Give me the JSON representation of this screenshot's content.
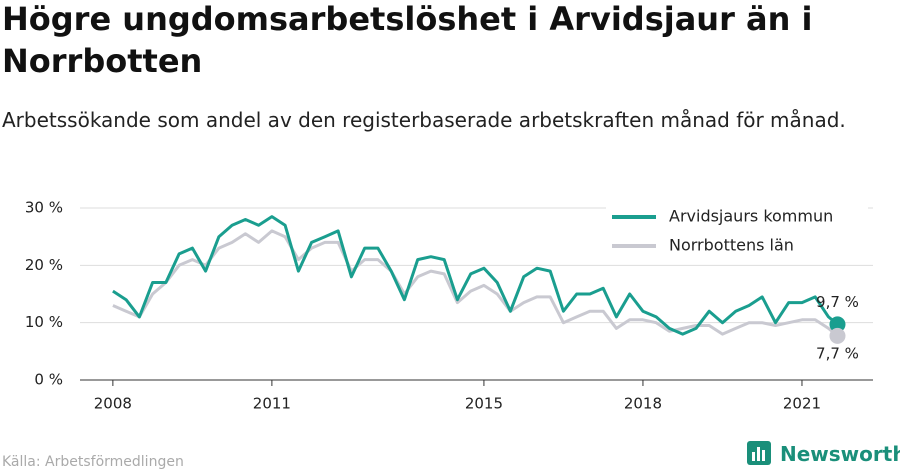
{
  "chart_data": {
    "type": "line",
    "title": "Högre ungdomsarbetslöshet i Arvidsjaur än i Norrbotten",
    "subtitle": "Arbetssökande som andel av den registerbaserade arbetskraften månad för månad.",
    "source": "Källa: Arbetsförmedlingen",
    "brand": "Newsworthy",
    "x": [
      2008,
      2008.25,
      2008.5,
      2008.75,
      2009,
      2009.25,
      2009.5,
      2009.75,
      2010,
      2010.25,
      2010.5,
      2010.75,
      2011,
      2011.25,
      2011.5,
      2011.75,
      2012,
      2012.25,
      2012.5,
      2012.75,
      2013,
      2013.25,
      2013.5,
      2013.75,
      2014,
      2014.25,
      2014.5,
      2014.75,
      2015,
      2015.25,
      2015.5,
      2015.75,
      2016,
      2016.25,
      2016.5,
      2016.75,
      2017,
      2017.25,
      2017.5,
      2017.75,
      2018,
      2018.25,
      2018.5,
      2018.75,
      2019,
      2019.25,
      2019.5,
      2019.75,
      2020,
      2020.25,
      2020.5,
      2020.75,
      2021,
      2021.25,
      2021.5,
      2021.67
    ],
    "series": [
      {
        "name": "Arvidsjaurs kommun",
        "color": "#1a9e8f",
        "values": [
          15.5,
          14,
          11,
          17,
          17,
          22,
          23,
          19,
          25,
          27,
          28,
          27,
          28.5,
          27,
          19,
          24,
          25,
          26,
          18,
          23,
          23,
          19,
          14,
          21,
          21.5,
          21,
          14,
          18.5,
          19.5,
          17,
          12,
          18,
          19.5,
          19,
          12,
          15,
          15,
          16,
          11,
          15,
          12,
          11,
          9,
          8,
          9,
          12,
          10,
          12,
          13,
          14.5,
          10,
          13.5,
          13.5,
          14.5,
          11,
          9.7
        ],
        "value_labels": [
          null,
          null,
          null,
          null,
          null,
          null,
          null,
          null,
          null,
          null,
          null,
          null,
          null,
          null,
          null,
          null,
          null,
          null,
          null,
          null,
          null,
          null,
          null,
          null,
          null,
          null,
          null,
          null,
          null,
          null,
          null,
          null,
          null,
          null,
          null,
          null,
          null,
          null,
          null,
          null,
          null,
          null,
          null,
          null,
          null,
          null,
          null,
          null,
          null,
          null,
          null,
          null,
          null,
          null,
          null,
          "9,7 %"
        ]
      },
      {
        "name": "Norrbottens län",
        "color": "#c9c9d1",
        "values": [
          13,
          12,
          11,
          15,
          17,
          20,
          21,
          20,
          23,
          24,
          25.5,
          24,
          26,
          25,
          21,
          23,
          24,
          24,
          19,
          21,
          21,
          19,
          15,
          18,
          19,
          18.5,
          13.5,
          15.5,
          16.5,
          15,
          12,
          13.5,
          14.5,
          14.5,
          10,
          11,
          12,
          12,
          9,
          10.5,
          10.5,
          10,
          8.5,
          9,
          9.5,
          9.5,
          8,
          9,
          10,
          10,
          9.5,
          10,
          10.5,
          10.5,
          9,
          7.7
        ],
        "value_labels": [
          null,
          null,
          null,
          null,
          null,
          null,
          null,
          null,
          null,
          null,
          null,
          null,
          null,
          null,
          null,
          null,
          null,
          null,
          null,
          null,
          null,
          null,
          null,
          null,
          null,
          null,
          null,
          null,
          null,
          null,
          null,
          null,
          null,
          null,
          null,
          null,
          null,
          null,
          null,
          null,
          null,
          null,
          null,
          null,
          null,
          null,
          null,
          null,
          null,
          null,
          null,
          null,
          null,
          null,
          null,
          "7,7 %"
        ]
      }
    ],
    "xlim": [
      2007.38,
      2022.34
    ],
    "xticks": [
      2008,
      2011,
      2015,
      2018,
      2021
    ],
    "ylim": [
      0,
      30
    ],
    "yticks": [
      {
        "value": 0,
        "label": "0 %"
      },
      {
        "value": 10,
        "label": "10 %"
      },
      {
        "value": 20,
        "label": "20 %"
      },
      {
        "value": 30,
        "label": "30 %"
      }
    ],
    "grid": true,
    "legend": "top-right"
  }
}
